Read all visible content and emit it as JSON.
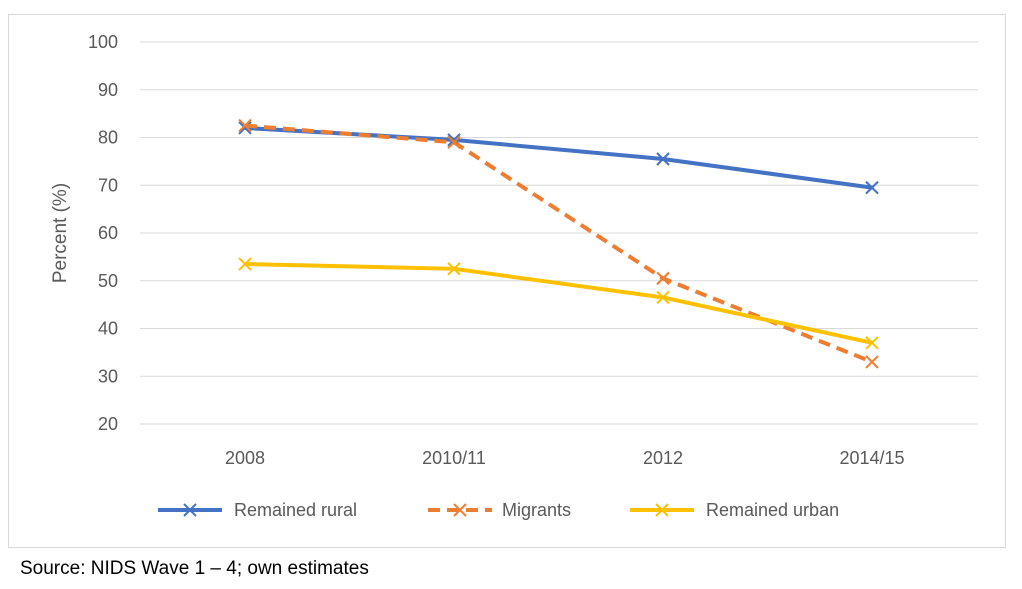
{
  "chart_data": {
    "type": "line",
    "x": [
      "2008",
      "2010/11",
      "2012",
      "2014/15"
    ],
    "ylabel": "Percent (%)",
    "xlabel": "",
    "ylim": [
      20,
      100
    ],
    "yticks": [
      20,
      30,
      40,
      50,
      60,
      70,
      80,
      90,
      100
    ],
    "grid": true,
    "legend_position": "bottom",
    "series": [
      {
        "name": "Remained rural",
        "values": [
          82,
          79.5,
          75.5,
          69.5
        ],
        "color": "#4472c4",
        "dash": "solid",
        "marker": "x"
      },
      {
        "name": "Migrants",
        "values": [
          82.5,
          79,
          50.5,
          33
        ],
        "color": "#ed7d31",
        "dash": "dashed",
        "marker": "x"
      },
      {
        "name": "Remained urban",
        "values": [
          53.5,
          52.5,
          46.5,
          37
        ],
        "color": "#ffc000",
        "dash": "solid",
        "marker": "x"
      }
    ]
  },
  "source_note": "Source: NIDS Wave 1 – 4; own estimates"
}
